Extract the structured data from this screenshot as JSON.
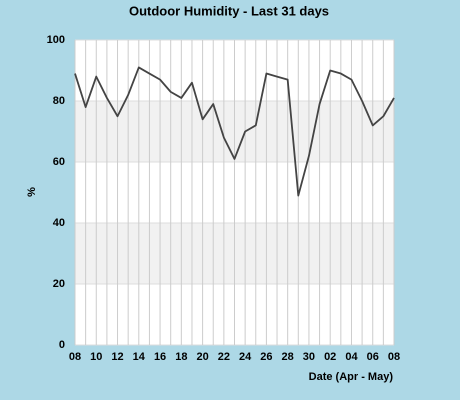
{
  "chart_data": {
    "type": "line",
    "title": "Outdoor Humidity - Last 31 days",
    "x_label": "Date (Apr - May)",
    "y_label": "%",
    "categories": [
      "08",
      null,
      "10",
      null,
      "12",
      null,
      "14",
      null,
      "16",
      null,
      "18",
      null,
      "20",
      null,
      "22",
      null,
      "24",
      null,
      "26",
      null,
      "28",
      null,
      "30",
      null,
      "02",
      null,
      "04",
      null,
      "06",
      null,
      "08"
    ],
    "values": [
      89,
      78,
      88,
      81,
      75,
      82,
      91,
      89,
      87,
      83,
      81,
      86,
      74,
      79,
      68,
      61,
      70,
      72,
      89,
      88,
      87,
      49,
      62,
      79,
      90,
      89,
      87,
      80,
      72,
      75,
      81
    ],
    "color": "#444444",
    "ylim": [
      0,
      100
    ],
    "yticks": [
      0,
      20,
      40,
      60,
      80,
      100
    ],
    "grid": true
  }
}
